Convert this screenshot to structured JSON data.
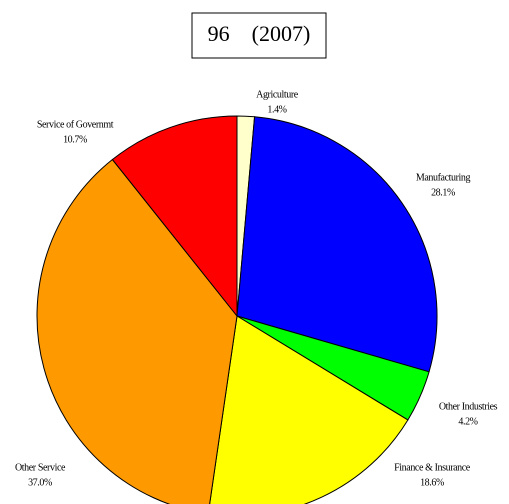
{
  "chart_data": {
    "type": "pie",
    "title": "96    (2007)",
    "categories": [
      "Agriculture",
      "Manufacturing",
      "Other Industries",
      "Finance & Insurance",
      "Other Service",
      "Service of Governmt"
    ],
    "values": [
      1.4,
      28.1,
      4.2,
      18.6,
      37.0,
      10.7
    ],
    "value_labels": [
      "1.4%",
      "28.1%",
      "4.2%",
      "18.6%",
      "37.0%",
      "10.7%"
    ],
    "colors": [
      "#ffffcc",
      "#0000ff",
      "#00ff00",
      "#ffff00",
      "#ff9900",
      "#ff0000"
    ]
  }
}
